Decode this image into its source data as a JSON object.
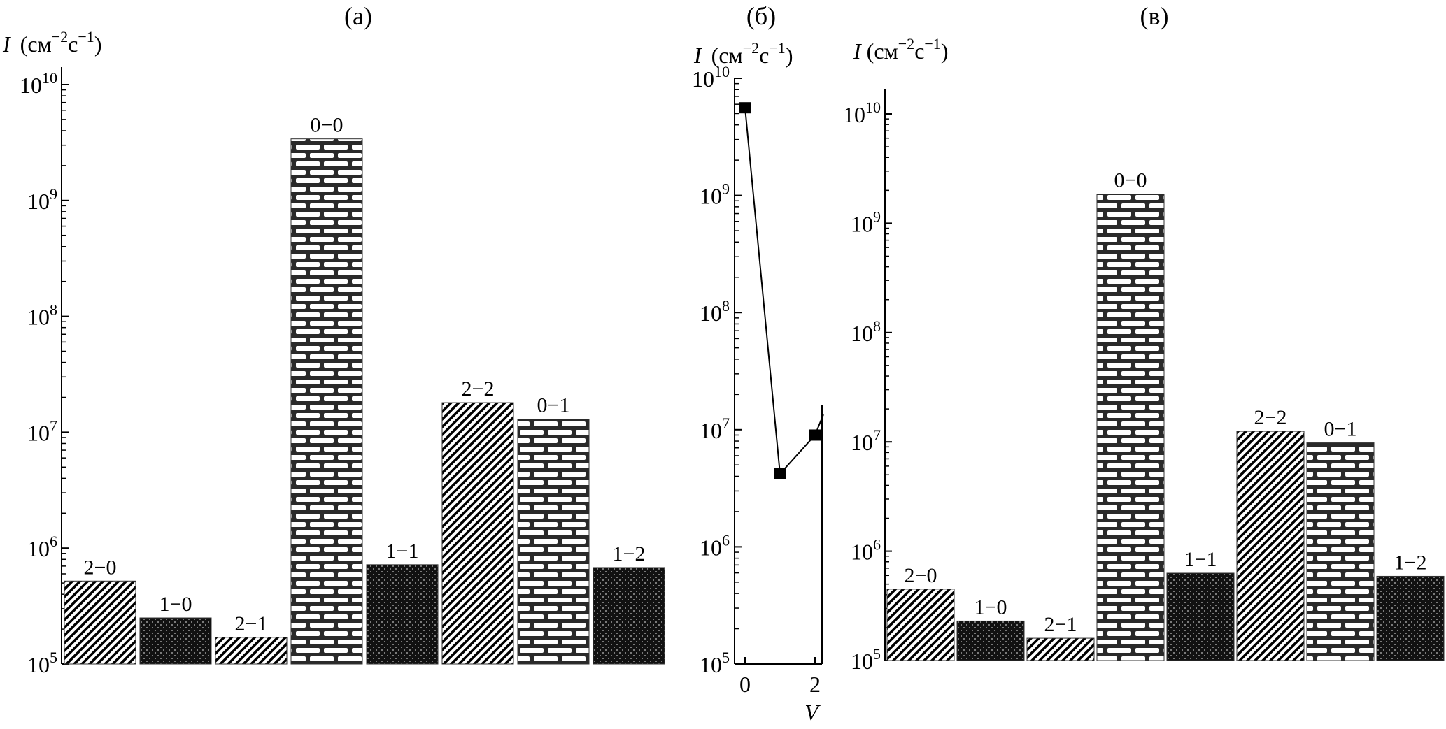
{
  "chart_data": [
    {
      "panel": "(а)",
      "type": "bar",
      "ylabel": {
        "sym": "I",
        "unit": "(см",
        "e1": "−2",
        "mid": "с",
        "e2": "−1",
        "close": ")"
      },
      "ylim": [
        100000,
        10000000000
      ],
      "yscale": "log",
      "y_ticks": [
        {
          "base": "10",
          "exp": "5"
        },
        {
          "base": "10",
          "exp": "6"
        },
        {
          "base": "10",
          "exp": "7"
        },
        {
          "base": "10",
          "exp": "8"
        },
        {
          "base": "10",
          "exp": "9"
        },
        {
          "base": "10",
          "exp": "10"
        }
      ],
      "categories": [
        "2−0",
        "1−0",
        "2−1",
        "0−0",
        "1−1",
        "2−2",
        "0−1",
        "1−2"
      ],
      "values": [
        520000,
        250000,
        170000,
        3400000000,
        720000,
        18000000,
        13000000,
        680000
      ],
      "patterns": [
        "hatch",
        "dots",
        "hatch",
        "brick",
        "dots",
        "hatch",
        "brick",
        "dots"
      ]
    },
    {
      "panel": "(б)",
      "type": "line",
      "ylabel": {
        "sym": "I",
        "unit": "(см",
        "e1": "−2",
        "mid": "с",
        "e2": "−1",
        "close": ")"
      },
      "xlabel": "V",
      "yscale": "log",
      "ylim": [
        100000,
        10000000000
      ],
      "xlim": [
        -0.3,
        2.2
      ],
      "x_ticks": [
        "0",
        "2"
      ],
      "y_ticks": [
        {
          "base": "10",
          "exp": "5"
        },
        {
          "base": "10",
          "exp": "6"
        },
        {
          "base": "10",
          "exp": "7"
        },
        {
          "base": "10",
          "exp": "8"
        },
        {
          "base": "10",
          "exp": "9"
        },
        {
          "base": "10",
          "exp": "10"
        }
      ],
      "x": [
        0,
        1,
        2
      ],
      "y": [
        5600000000,
        4200000,
        9000000
      ]
    },
    {
      "panel": "(в)",
      "type": "bar",
      "ylabel": {
        "sym": "I",
        "unit": "(см",
        "e1": "−2",
        "mid": "с",
        "e2": "−1",
        "close": ")"
      },
      "ylim": [
        100000,
        10000000000
      ],
      "yscale": "log",
      "y_ticks": [
        {
          "base": "10",
          "exp": "5"
        },
        {
          "base": "10",
          "exp": "6"
        },
        {
          "base": "10",
          "exp": "7"
        },
        {
          "base": "10",
          "exp": "8"
        },
        {
          "base": "10",
          "exp": "9"
        },
        {
          "base": "10",
          "exp": "10"
        }
      ],
      "categories": [
        "2−0",
        "1−0",
        "2−1",
        "0−0",
        "1−1",
        "2−2",
        "0−1",
        "1−2"
      ],
      "values": [
        450000,
        230000,
        160000,
        1850000000,
        630000,
        12500000,
        9800000,
        590000
      ],
      "patterns": [
        "hatch",
        "dots",
        "hatch",
        "brick",
        "dots",
        "hatch",
        "brick",
        "dots"
      ]
    }
  ]
}
